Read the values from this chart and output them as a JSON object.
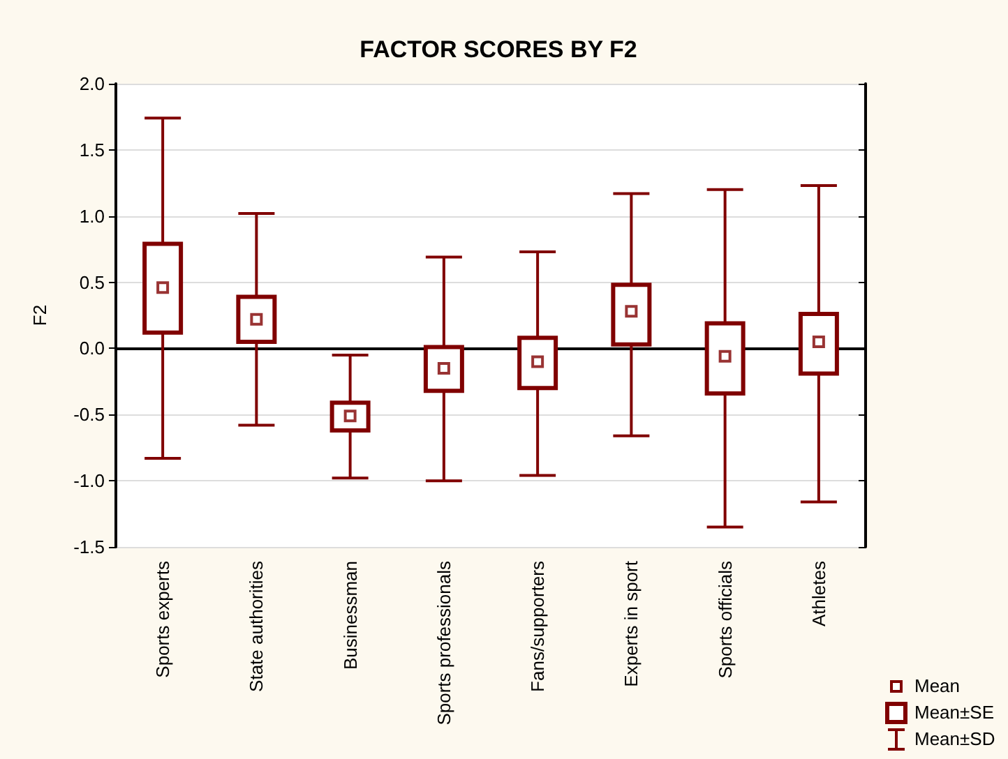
{
  "chart_data": {
    "type": "box",
    "title": "FACTOR SCORES BY F2",
    "ylabel": "F2",
    "categories": [
      "Sports experts",
      "State authorities",
      "Businessman",
      "Sports professionals",
      "Fans/supporters",
      "Experts in sport",
      "Sports officials",
      "Athletes"
    ],
    "color": "#800000",
    "boxes": [
      {
        "low": -0.83,
        "q1": 0.12,
        "median": 0.46,
        "q3": 0.79,
        "high": 1.74
      },
      {
        "low": -0.58,
        "q1": 0.05,
        "median": 0.22,
        "q3": 0.39,
        "high": 1.02
      },
      {
        "low": -0.98,
        "q1": -0.62,
        "median": -0.51,
        "q3": -0.41,
        "high": -0.05
      },
      {
        "low": -1.0,
        "q1": -0.32,
        "median": -0.15,
        "q3": 0.01,
        "high": 0.69
      },
      {
        "low": -0.96,
        "q1": -0.3,
        "median": -0.1,
        "q3": 0.08,
        "high": 0.73
      },
      {
        "low": -0.66,
        "q1": 0.03,
        "median": 0.28,
        "q3": 0.48,
        "high": 1.17
      },
      {
        "low": -1.35,
        "q1": -0.34,
        "median": -0.06,
        "q3": 0.19,
        "high": 1.2
      },
      {
        "low": -1.16,
        "q1": -0.19,
        "median": 0.05,
        "q3": 0.26,
        "high": 1.23
      }
    ],
    "annotations": [
      "Mean",
      "Mean±SE",
      "Mean±SD"
    ],
    "ylim": [
      -1.5,
      2.0
    ],
    "yticks": [
      {
        "value": 2.0,
        "label": "2.0"
      },
      1.5,
      {
        "value": 1.0,
        "label": "1.0"
      },
      0.5,
      {
        "value": 0.0,
        "label": "0.0"
      },
      -0.5,
      {
        "value": -1.0,
        "label": "-1.0"
      },
      -1.5
    ],
    "grid": "y"
  }
}
